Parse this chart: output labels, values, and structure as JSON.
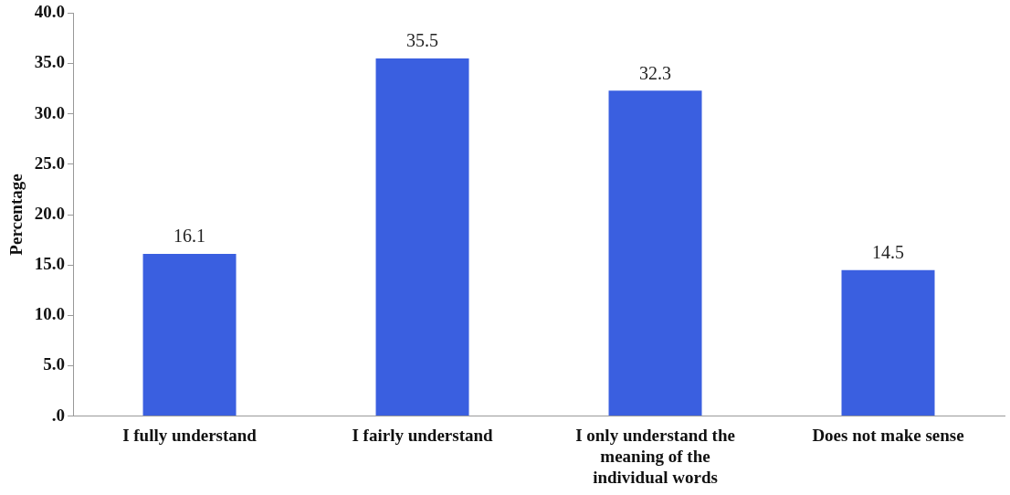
{
  "chart_data": {
    "type": "bar",
    "ylabel": "Percentage",
    "categories": [
      "I fully understand",
      "I fairly understand",
      "I only understand the meaning of the individual words",
      "Does not make sense"
    ],
    "values": [
      16.1,
      35.5,
      32.3,
      14.5
    ],
    "color": "#3a5fe0",
    "data_labels": true,
    "grid": false,
    "legend": false,
    "ylim": [
      0,
      40
    ],
    "yticks": [
      {
        "value": 0,
        "label": ".0"
      },
      {
        "value": 5,
        "label": "5.0"
      },
      {
        "value": 10,
        "label": "10.0"
      },
      {
        "value": 15,
        "label": "15.0"
      },
      {
        "value": 20,
        "label": "20.0"
      },
      {
        "value": 25,
        "label": "25.0"
      },
      {
        "value": 30,
        "label": "30.0"
      },
      {
        "value": 35,
        "label": "35.0"
      },
      {
        "value": 40,
        "label": "40.0"
      }
    ]
  }
}
